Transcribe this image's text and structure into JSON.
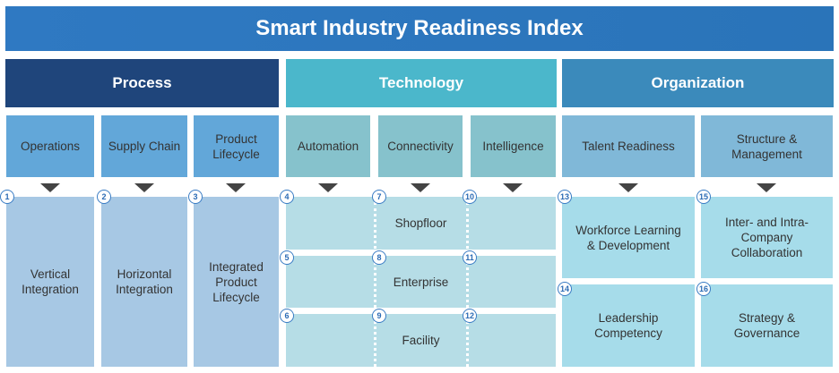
{
  "title": "Smart Industry Readiness Index",
  "pillars": [
    {
      "label": "Process",
      "color": "#1f457b"
    },
    {
      "label": "Technology",
      "color": "#4bb7cb"
    },
    {
      "label": "Organization",
      "color": "#3b8abb"
    }
  ],
  "building_blocks": [
    "Operations",
    "Supply Chain",
    "Product Lifecycle",
    "Automation",
    "Connectivity",
    "Intelligence",
    "Talent Readiness",
    "Structure & Management"
  ],
  "process_dimensions": [
    {
      "num": "1",
      "label": "Vertical Integration"
    },
    {
      "num": "2",
      "label": "Horizontal Integration"
    },
    {
      "num": "3",
      "label": "Integrated Product Lifecycle"
    }
  ],
  "technology_rows": [
    {
      "label": "Shopfloor",
      "nums": [
        "4",
        "7",
        "10"
      ]
    },
    {
      "label": "Enterprise",
      "nums": [
        "5",
        "8",
        "11"
      ]
    },
    {
      "label": "Facility",
      "nums": [
        "6",
        "9",
        "12"
      ]
    }
  ],
  "organization_dimensions": [
    {
      "num": "13",
      "label": "Workforce Learning & Development"
    },
    {
      "num": "14",
      "label": "Leadership Competency"
    },
    {
      "num": "15",
      "label": "Inter- and Intra-Company Collaboration"
    },
    {
      "num": "16",
      "label": "Strategy & Governance"
    }
  ]
}
